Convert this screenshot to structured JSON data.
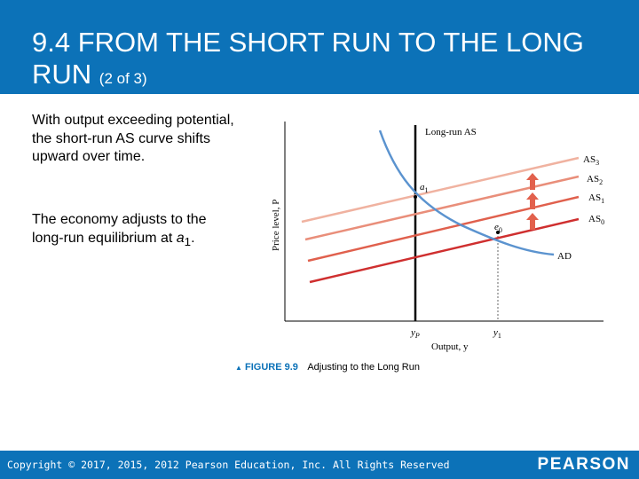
{
  "slide": {
    "title_main": "9.4 FROM THE SHORT RUN TO THE LONG RUN",
    "title_sub": "(2 of 3)",
    "paragraph1": "With output exceeding potential, the short-run AS curve shifts upward over time.",
    "paragraph2_prefix": "The economy adjusts to the long-run equilibrium at ",
    "paragraph2_var": "a",
    "paragraph2_sub": "1",
    "paragraph2_suffix": ".",
    "copyright": "Copyright © 2017, 2015, 2012 Pearson Education, Inc. All Rights Reserved",
    "brand": "PEARSON"
  },
  "figure": {
    "caption_label": "FIGURE 9.9",
    "caption_title": "Adjusting to the Long Run",
    "y_axis_label": "Price level, P",
    "x_axis_label": "Output, y",
    "x_ticks": {
      "yp": "y",
      "yp_sub": "P",
      "y1": "y",
      "y1_sub": "1"
    },
    "long_run_as_label": "Long-run AS",
    "ad_label": "AD",
    "point_a1": "a",
    "point_a1_sub": "1",
    "point_e0": "e",
    "point_e0_sub": "0",
    "curves": [
      {
        "label": "AS",
        "sub": "3",
        "color": "#f0b2a0"
      },
      {
        "label": "AS",
        "sub": "2",
        "color": "#e98e7a"
      },
      {
        "label": "AS",
        "sub": "1",
        "color": "#e0604d"
      },
      {
        "label": "AS",
        "sub": "0",
        "color": "#cf2f2f"
      }
    ],
    "colors": {
      "ad": "#5b93cf",
      "arrow": "#e2614d",
      "axis": "#000000"
    }
  }
}
